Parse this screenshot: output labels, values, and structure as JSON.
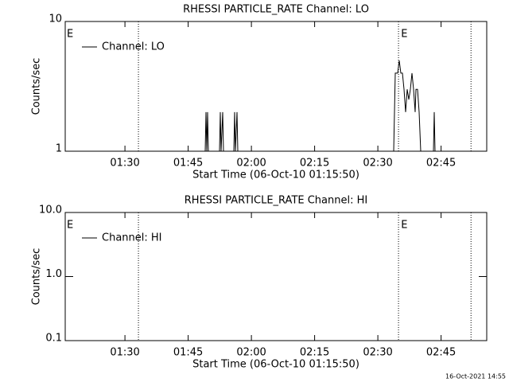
{
  "chart_data": [
    {
      "type": "line",
      "title": "RHESSI PARTICLE_RATE Channel: LO",
      "xlabel": "Start Time (06-Oct-10 01:15:50)",
      "ylabel": "Counts/sec",
      "log_y": true,
      "xlim": [
        75.83,
        175.83
      ],
      "ylim": [
        1,
        10
      ],
      "xticks": [
        {
          "value": 90,
          "label": "01:30"
        },
        {
          "value": 105,
          "label": "01:45"
        },
        {
          "value": 120,
          "label": "02:00"
        },
        {
          "value": 135,
          "label": "02:15"
        },
        {
          "value": 150,
          "label": "02:30"
        },
        {
          "value": 165,
          "label": "02:45"
        }
      ],
      "yticks": [
        1,
        10
      ],
      "vlines": [
        93.2,
        154.9,
        172.1
      ],
      "event_labels": [
        {
          "x": 76.2,
          "label": "E"
        },
        {
          "x": 155.5,
          "label": "E"
        }
      ],
      "series": [
        {
          "name": "Channel: LO",
          "color": "#000000",
          "x": [
            75.83,
            109.04,
            109.23,
            109.42,
            109.6,
            109.79,
            112.43,
            112.62,
            112.81,
            113.19,
            113.38,
            115.83,
            116.02,
            116.21,
            116.58,
            116.77,
            153.75,
            154.13,
            154.7,
            155.08,
            155.45,
            155.83,
            156.21,
            156.58,
            156.96,
            157.34,
            157.72,
            158.09,
            158.47,
            158.85,
            159.04,
            159.42,
            159.79,
            160.17,
            163.19,
            163.38,
            163.57,
            165.26
          ],
          "values": [
            1,
            1,
            2,
            1,
            2,
            1,
            1,
            2,
            1,
            2,
            1,
            1,
            2,
            1,
            2,
            1,
            1,
            4,
            4,
            5,
            4,
            4,
            3,
            2,
            3,
            2.5,
            3,
            4,
            3,
            2,
            3,
            3,
            2,
            1,
            1,
            2,
            1,
            1
          ]
        }
      ]
    },
    {
      "type": "line",
      "title": "RHESSI PARTICLE_RATE Channel: HI",
      "xlabel": "Start Time (06-Oct-10 01:15:50)",
      "ylabel": "Counts/sec",
      "log_y": true,
      "xlim": [
        75.83,
        175.83
      ],
      "ylim": [
        0.1,
        10
      ],
      "xticks": [
        {
          "value": 90,
          "label": "01:30"
        },
        {
          "value": 105,
          "label": "01:45"
        },
        {
          "value": 120,
          "label": "02:00"
        },
        {
          "value": 135,
          "label": "02:15"
        },
        {
          "value": 150,
          "label": "02:30"
        },
        {
          "value": 165,
          "label": "02:45"
        }
      ],
      "yticks": [
        0.1,
        {
          "value": 1,
          "label": "1.0"
        },
        {
          "value": 10,
          "label": "10.0"
        }
      ],
      "vlines": [
        93.2,
        154.9,
        172.1
      ],
      "event_labels": [
        {
          "x": 76.2,
          "label": "E"
        },
        {
          "x": 155.5,
          "label": "E"
        }
      ],
      "series": [
        {
          "name": "Channel: HI",
          "color": "#000000",
          "x": [],
          "values": []
        }
      ]
    }
  ],
  "footer": "16-Oct-2021 14:55"
}
